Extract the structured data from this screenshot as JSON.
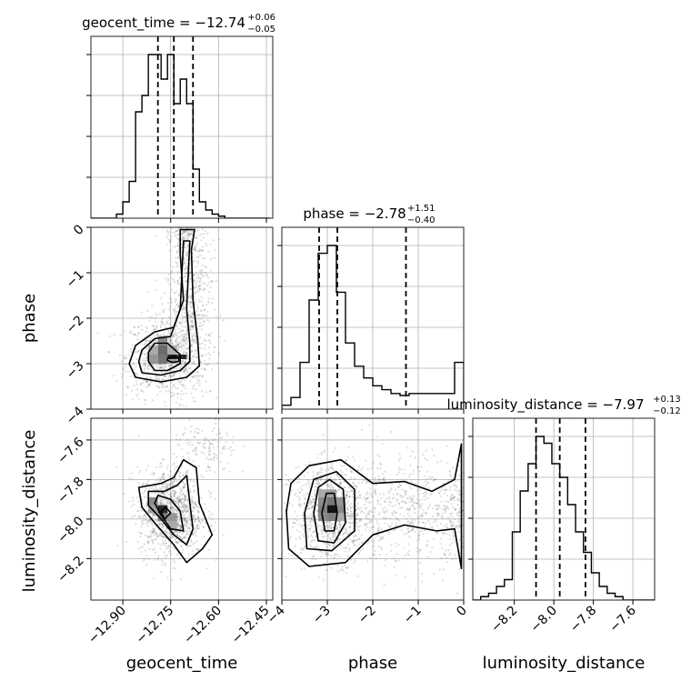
{
  "chart_data": {
    "type": "corner",
    "grid": true,
    "parameters": [
      "geocent_time",
      "phase",
      "luminosity_distance"
    ],
    "axis_labels": {
      "geocent_time": "geocent_time",
      "phase": "phase",
      "luminosity_distance": "luminosity_distance"
    },
    "ranges": {
      "geocent_time": [
        -13.0,
        -12.43
      ],
      "phase": [
        -4,
        0
      ],
      "luminosity_distance": [
        -8.41,
        -7.49
      ]
    },
    "ticks": {
      "geocent_time": [
        {
          "v": -12.9,
          "label": "−12.90"
        },
        {
          "v": -12.75,
          "label": "−12.75"
        },
        {
          "v": -12.6,
          "label": "−12.60"
        },
        {
          "v": -12.45,
          "label": "−12.45"
        }
      ],
      "phase": [
        {
          "v": -4,
          "label": "−4"
        },
        {
          "v": -3,
          "label": "−3"
        },
        {
          "v": -2,
          "label": "−2"
        },
        {
          "v": -1,
          "label": "−1"
        },
        {
          "v": 0,
          "label": "0"
        }
      ],
      "luminosity_distance": [
        {
          "v": -8.2,
          "label": "−8.2"
        },
        {
          "v": -8.0,
          "label": "−8.0"
        },
        {
          "v": -7.8,
          "label": "−7.8"
        },
        {
          "v": -7.6,
          "label": "−7.6"
        }
      ]
    },
    "titles": [
      {
        "param": "geocent_time",
        "main": "geocent_time = −12.74",
        "sup": "+0.06",
        "sub": "−0.05"
      },
      {
        "param": "phase",
        "main": "phase = −2.78",
        "sup": "+1.51",
        "sub": "−0.40"
      },
      {
        "param": "luminosity_distance",
        "main": "luminosity_distance = −7.97",
        "sup": "+0.13",
        "sub": "−0.12"
      }
    ],
    "histograms": [
      {
        "param": "geocent_time",
        "edges": [
          -13.0,
          -12.98,
          -12.96,
          -12.94,
          -12.92,
          -12.9,
          -12.88,
          -12.86,
          -12.84,
          -12.82,
          -12.8,
          -12.78,
          -12.76,
          -12.74,
          -12.72,
          -12.7,
          -12.68,
          -12.66,
          -12.64,
          -12.62,
          -12.6,
          -12.58,
          -12.56,
          -12.54,
          -12.52,
          -12.5,
          -12.48,
          -12.46,
          -12.44
        ],
        "counts": [
          0,
          0,
          0,
          0,
          1,
          4,
          9,
          26,
          30,
          40,
          40,
          34,
          40,
          28,
          34,
          28,
          12,
          4,
          2,
          1,
          0.5,
          0,
          0,
          0,
          0,
          0,
          0,
          0
        ],
        "quantiles": [
          -12.79,
          -12.74,
          -12.68
        ]
      },
      {
        "param": "phase",
        "edges": [
          -4.0,
          -3.8,
          -3.6,
          -3.4,
          -3.2,
          -3.0,
          -2.8,
          -2.6,
          -2.4,
          -2.2,
          -2.0,
          -1.8,
          -1.6,
          -1.4,
          -1.2,
          -1.0,
          -0.8,
          -0.6,
          -0.4,
          -0.2,
          0.0
        ],
        "counts": [
          1,
          3,
          12,
          28,
          40,
          42,
          30,
          17,
          11,
          8,
          6,
          5,
          4,
          3.5,
          4,
          4,
          4,
          4,
          4,
          12
        ],
        "quantiles": [
          -3.18,
          -2.78,
          -1.27
        ]
      },
      {
        "param": "luminosity_distance",
        "edges": [
          -8.41,
          -8.37,
          -8.33,
          -8.29,
          -8.25,
          -8.21,
          -8.17,
          -8.13,
          -8.09,
          -8.05,
          -8.01,
          -7.97,
          -7.93,
          -7.89,
          -7.85,
          -7.81,
          -7.77,
          -7.73,
          -7.69,
          -7.65,
          -7.61,
          -7.57,
          -7.53,
          -7.49
        ],
        "counts": [
          0,
          0.5,
          1,
          2,
          3,
          10,
          16,
          20,
          24,
          23,
          20,
          18,
          14,
          10,
          7,
          4,
          2,
          1,
          0.5,
          0,
          0,
          0,
          0
        ],
        "quantiles": [
          -8.09,
          -7.97,
          -7.84
        ]
      }
    ],
    "density_panels": [
      {
        "x": "geocent_time",
        "y": "phase",
        "cloud": [
          {
            "cx": -12.77,
            "cy": -2.85,
            "sx": 0.06,
            "sy": 0.45,
            "n": 750
          },
          {
            "cx": -12.69,
            "cy": -1.6,
            "sx": 0.035,
            "sy": 1.1,
            "n": 700
          },
          {
            "cx": -12.71,
            "cy": -0.1,
            "sx": 0.02,
            "sy": 0.18,
            "n": 120
          }
        ],
        "cells": [
          {
            "x": -12.79,
            "y": -2.6,
            "w": 0.03,
            "h": 0.2,
            "level": 0.45
          },
          {
            "x": -12.79,
            "y": -2.8,
            "w": 0.03,
            "h": 0.2,
            "level": 0.6
          },
          {
            "x": -12.79,
            "y": -3.0,
            "w": 0.03,
            "h": 0.2,
            "level": 0.55
          },
          {
            "x": -12.82,
            "y": -2.8,
            "w": 0.03,
            "h": 0.2,
            "level": 0.3
          },
          {
            "x": -12.82,
            "y": -3.0,
            "w": 0.03,
            "h": 0.2,
            "level": 0.4
          },
          {
            "x": -12.76,
            "y": -2.8,
            "w": 0.03,
            "h": 0.2,
            "level": 0.3
          },
          {
            "x": -12.76,
            "y": -3.0,
            "w": 0.03,
            "h": 0.2,
            "level": 0.35
          },
          {
            "x": -12.76,
            "y": -2.9,
            "w": 0.03,
            "h": 0.1,
            "level": 0.95
          },
          {
            "x": -12.73,
            "y": -2.9,
            "w": 0.03,
            "h": 0.1,
            "level": 0.9
          }
        ],
        "contours": [
          [
            [
              -12.88,
              -3.0
            ],
            [
              -12.86,
              -3.3
            ],
            [
              -12.78,
              -3.4
            ],
            [
              -12.7,
              -3.3
            ],
            [
              -12.66,
              -3.05
            ],
            [
              -12.665,
              -2.5
            ],
            [
              -12.68,
              -1.6
            ],
            [
              -12.685,
              -0.5
            ],
            [
              -12.675,
              -0.05
            ],
            [
              -12.72,
              -0.05
            ],
            [
              -12.72,
              -0.6
            ],
            [
              -12.71,
              -1.6
            ],
            [
              -12.74,
              -2.2
            ],
            [
              -12.8,
              -2.3
            ],
            [
              -12.86,
              -2.6
            ]
          ],
          [
            [
              -12.85,
              -2.95
            ],
            [
              -12.84,
              -3.2
            ],
            [
              -12.78,
              -3.25
            ],
            [
              -12.72,
              -3.15
            ],
            [
              -12.69,
              -2.95
            ],
            [
              -12.69,
              -2.55
            ],
            [
              -12.7,
              -1.8
            ],
            [
              -12.69,
              -0.3
            ],
            [
              -12.71,
              -0.3
            ],
            [
              -12.72,
              -1.8
            ],
            [
              -12.75,
              -2.4
            ],
            [
              -12.8,
              -2.45
            ],
            [
              -12.84,
              -2.7
            ]
          ],
          [
            [
              -12.82,
              -2.95
            ],
            [
              -12.8,
              -3.15
            ],
            [
              -12.76,
              -3.15
            ],
            [
              -12.72,
              -3.0
            ],
            [
              -12.72,
              -2.8
            ],
            [
              -12.76,
              -2.55
            ],
            [
              -12.8,
              -2.55
            ],
            [
              -12.82,
              -2.75
            ]
          ],
          [
            [
              -12.76,
              -2.93
            ],
            [
              -12.745,
              -2.97
            ],
            [
              -12.725,
              -2.95
            ],
            [
              -12.725,
              -2.87
            ],
            [
              -12.74,
              -2.85
            ],
            [
              -12.76,
              -2.88
            ]
          ]
        ]
      },
      {
        "x": "geocent_time",
        "y": "luminosity_distance",
        "cloud": [
          {
            "cx": -12.75,
            "cy": -7.97,
            "sx": 0.05,
            "sy": 0.11,
            "n": 1100
          },
          {
            "cx": -12.64,
            "cy": -7.65,
            "sx": 0.05,
            "sy": 0.08,
            "n": 150
          }
        ],
        "cells": [
          {
            "x": -12.82,
            "y": -7.93,
            "w": 0.03,
            "h": 0.04,
            "level": 0.45
          },
          {
            "x": -12.82,
            "y": -7.97,
            "w": 0.03,
            "h": 0.04,
            "level": 0.35
          },
          {
            "x": -12.79,
            "y": -7.97,
            "w": 0.03,
            "h": 0.04,
            "level": 0.9
          },
          {
            "x": -12.79,
            "y": -8.01,
            "w": 0.03,
            "h": 0.04,
            "level": 0.5
          },
          {
            "x": -12.76,
            "y": -8.01,
            "w": 0.03,
            "h": 0.04,
            "level": 0.4
          },
          {
            "x": -12.76,
            "y": -8.05,
            "w": 0.03,
            "h": 0.04,
            "level": 0.3
          }
        ],
        "contours": [
          [
            [
              -12.85,
              -7.84
            ],
            [
              -12.78,
              -7.82
            ],
            [
              -12.74,
              -7.79
            ],
            [
              -12.71,
              -7.7
            ],
            [
              -12.67,
              -7.74
            ],
            [
              -12.66,
              -7.92
            ],
            [
              -12.62,
              -8.08
            ],
            [
              -12.65,
              -8.15
            ],
            [
              -12.7,
              -8.22
            ],
            [
              -12.74,
              -8.13
            ],
            [
              -12.8,
              -8.02
            ],
            [
              -12.84,
              -7.94
            ]
          ],
          [
            [
              -12.82,
              -7.86
            ],
            [
              -12.77,
              -7.86
            ],
            [
              -12.73,
              -7.83
            ],
            [
              -12.7,
              -7.78
            ],
            [
              -12.69,
              -7.92
            ],
            [
              -12.68,
              -8.05
            ],
            [
              -12.7,
              -8.13
            ],
            [
              -12.74,
              -8.08
            ],
            [
              -12.78,
              -8.0
            ],
            [
              -12.82,
              -7.93
            ]
          ],
          [
            [
              -12.79,
              -7.88
            ],
            [
              -12.75,
              -7.9
            ],
            [
              -12.72,
              -7.96
            ],
            [
              -12.71,
              -8.06
            ],
            [
              -12.75,
              -8.05
            ],
            [
              -12.78,
              -7.98
            ],
            [
              -12.8,
              -7.92
            ]
          ],
          [
            [
              -12.78,
              -7.96
            ],
            [
              -12.765,
              -7.94
            ],
            [
              -12.75,
              -7.97
            ],
            [
              -12.77,
              -8.0
            ]
          ]
        ]
      },
      {
        "x": "phase",
        "y": "luminosity_distance",
        "cloud": [
          {
            "cx": -2.9,
            "cy": -7.97,
            "sx": 0.45,
            "sy": 0.12,
            "n": 1000
          },
          {
            "cx": -1.2,
            "cy": -7.95,
            "sx": 0.7,
            "sy": 0.14,
            "n": 500
          },
          {
            "cx": -0.15,
            "cy": -7.97,
            "sx": 0.2,
            "sy": 0.12,
            "n": 150
          }
        ],
        "cells": [
          {
            "x": -3.2,
            "y": -7.89,
            "w": 0.2,
            "h": 0.04,
            "level": 0.3
          },
          {
            "x": -3.2,
            "y": -7.93,
            "w": 0.2,
            "h": 0.04,
            "level": 0.45
          },
          {
            "x": -3.2,
            "y": -7.97,
            "w": 0.2,
            "h": 0.04,
            "level": 0.5
          },
          {
            "x": -3.2,
            "y": -8.01,
            "w": 0.2,
            "h": 0.04,
            "level": 0.45
          },
          {
            "x": -3.0,
            "y": -7.89,
            "w": 0.2,
            "h": 0.04,
            "level": 0.35
          },
          {
            "x": -3.0,
            "y": -7.93,
            "w": 0.2,
            "h": 0.04,
            "level": 0.55
          },
          {
            "x": -3.0,
            "y": -7.97,
            "w": 0.2,
            "h": 0.04,
            "level": 1.0
          },
          {
            "x": -3.0,
            "y": -8.01,
            "w": 0.2,
            "h": 0.04,
            "level": 0.5
          },
          {
            "x": -2.8,
            "y": -7.93,
            "w": 0.2,
            "h": 0.04,
            "level": 0.4
          },
          {
            "x": -2.8,
            "y": -7.97,
            "w": 0.2,
            "h": 0.04,
            "level": 0.45
          },
          {
            "x": -2.8,
            "y": -8.01,
            "w": 0.2,
            "h": 0.04,
            "level": 0.3
          }
        ],
        "contours": [
          [
            [
              -3.9,
              -7.96
            ],
            [
              -3.85,
              -8.15
            ],
            [
              -3.4,
              -8.24
            ],
            [
              -2.6,
              -8.22
            ],
            [
              -2.0,
              -8.08
            ],
            [
              -1.3,
              -8.03
            ],
            [
              -0.6,
              -8.06
            ],
            [
              -0.2,
              -8.05
            ],
            [
              -0.05,
              -8.25
            ],
            [
              -0.05,
              -7.62
            ],
            [
              -0.2,
              -7.8
            ],
            [
              -0.7,
              -7.86
            ],
            [
              -1.3,
              -7.81
            ],
            [
              -2.0,
              -7.82
            ],
            [
              -2.7,
              -7.7
            ],
            [
              -3.4,
              -7.73
            ],
            [
              -3.8,
              -7.82
            ]
          ],
          [
            [
              -3.5,
              -7.97
            ],
            [
              -3.45,
              -8.15
            ],
            [
              -2.9,
              -8.16
            ],
            [
              -2.4,
              -8.06
            ],
            [
              -2.4,
              -7.85
            ],
            [
              -2.8,
              -7.76
            ],
            [
              -3.3,
              -7.8
            ]
          ],
          [
            [
              -3.3,
              -7.97
            ],
            [
              -3.2,
              -8.11
            ],
            [
              -2.85,
              -8.12
            ],
            [
              -2.6,
              -8.02
            ],
            [
              -2.65,
              -7.85
            ],
            [
              -2.95,
              -7.8
            ],
            [
              -3.2,
              -7.84
            ]
          ],
          [
            [
              -3.12,
              -7.97
            ],
            [
              -3.05,
              -8.06
            ],
            [
              -2.85,
              -8.06
            ],
            [
              -2.78,
              -7.97
            ],
            [
              -2.85,
              -7.87
            ],
            [
              -3.02,
              -7.87
            ]
          ]
        ]
      }
    ]
  }
}
